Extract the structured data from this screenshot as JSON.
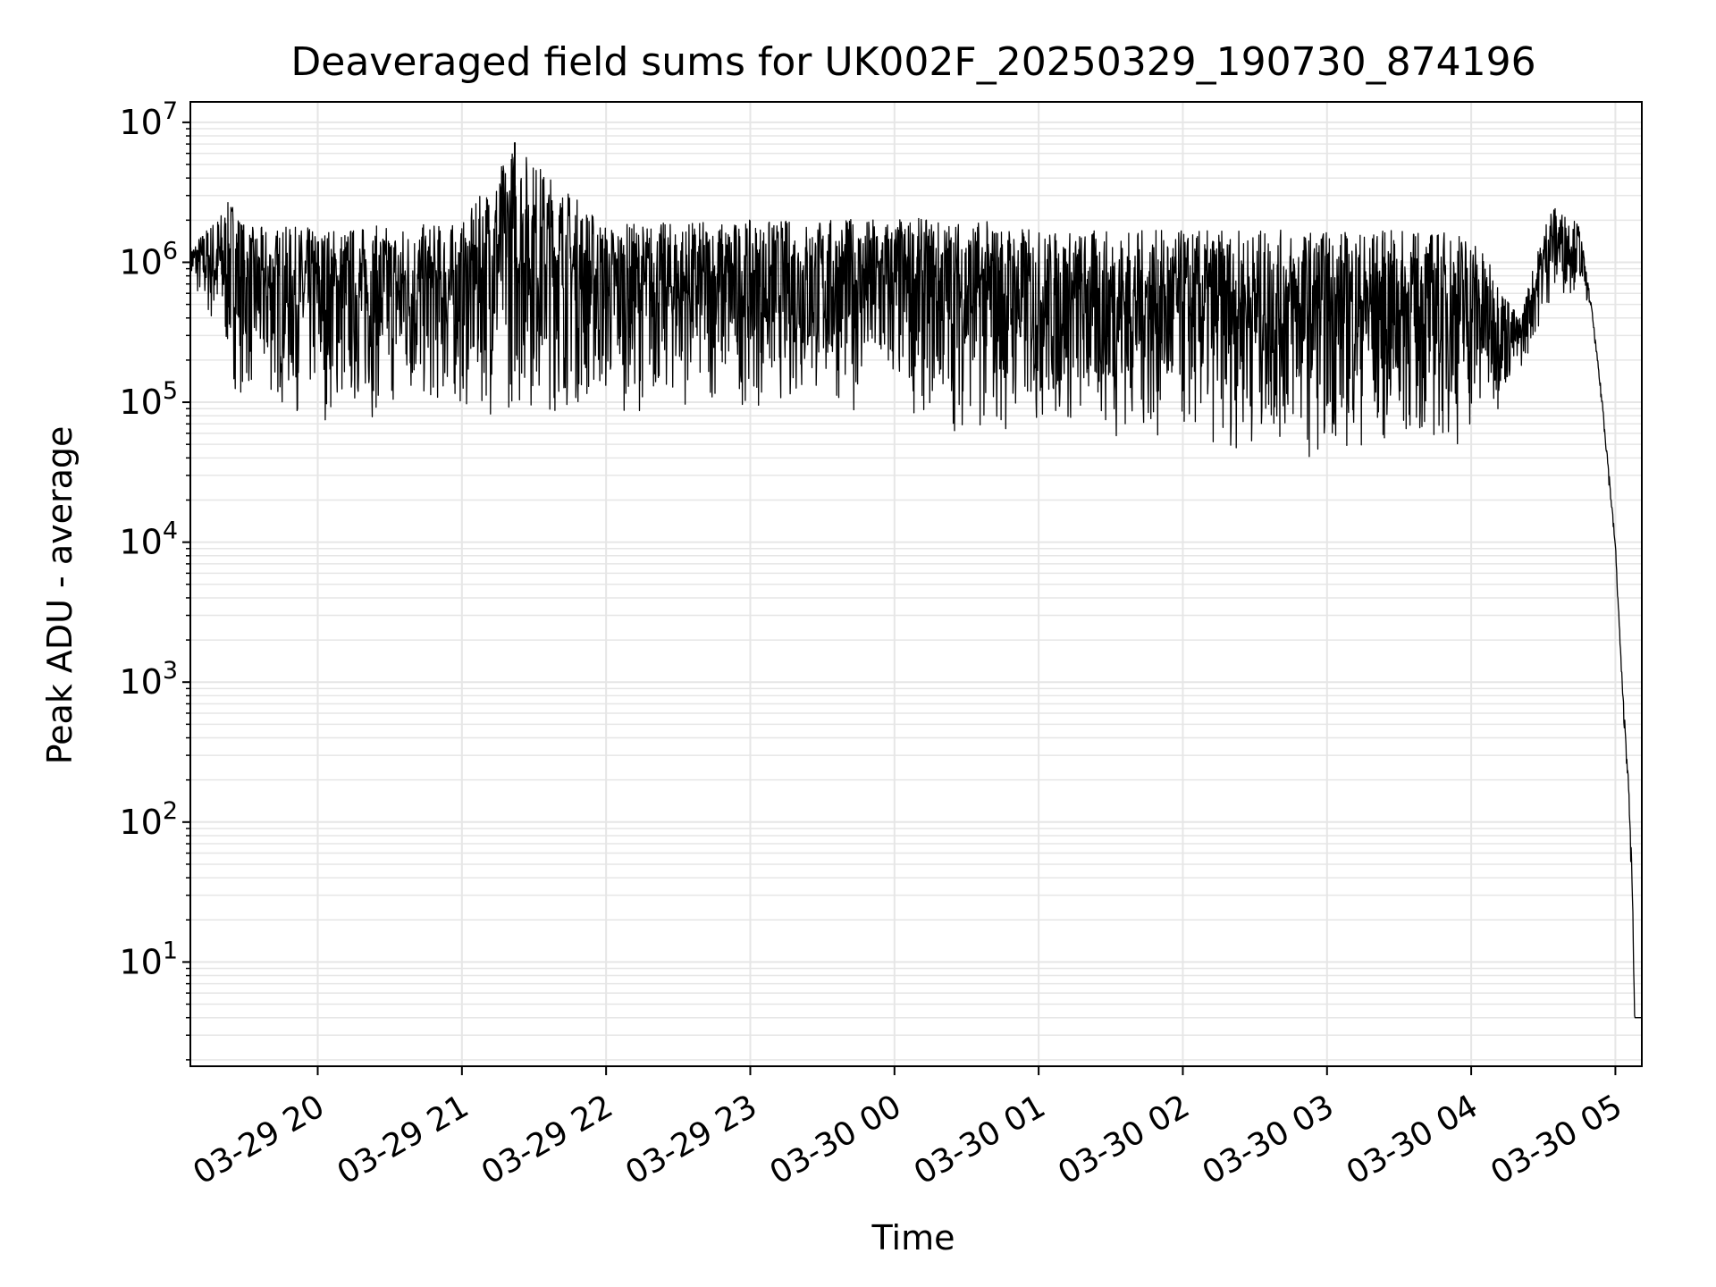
{
  "chart_data": {
    "type": "line",
    "title": "Deaveraged field sums for UK002F_20250329_190730_874196",
    "xlabel": "Time",
    "ylabel": "Peak ADU - average",
    "yscale": "log",
    "ylim": [
      1.8,
      14000000
    ],
    "xlim": [
      "03-29 19:07",
      "03-30 05:11"
    ],
    "x_ticks": [
      {
        "value": "03-29 20:00",
        "label": "03-29 20"
      },
      {
        "value": "03-29 21:00",
        "label": "03-29 21"
      },
      {
        "value": "03-29 22:00",
        "label": "03-29 22"
      },
      {
        "value": "03-29 23:00",
        "label": "03-29 23"
      },
      {
        "value": "03-30 00:00",
        "label": "03-30 00"
      },
      {
        "value": "03-30 01:00",
        "label": "03-30 01"
      },
      {
        "value": "03-30 02:00",
        "label": "03-30 02"
      },
      {
        "value": "03-30 03:00",
        "label": "03-30 03"
      },
      {
        "value": "03-30 04:00",
        "label": "03-30 04"
      },
      {
        "value": "03-30 05:00",
        "label": "03-30 05"
      }
    ],
    "y_ticks": [
      {
        "value": 10,
        "base": "10",
        "exp": "1"
      },
      {
        "value": 100,
        "base": "10",
        "exp": "2"
      },
      {
        "value": 1000,
        "base": "10",
        "exp": "3"
      },
      {
        "value": 10000,
        "base": "10",
        "exp": "4"
      },
      {
        "value": 100000,
        "base": "10",
        "exp": "5"
      },
      {
        "value": 1000000,
        "base": "10",
        "exp": "6"
      },
      {
        "value": 10000000,
        "base": "10",
        "exp": "7"
      }
    ],
    "grid": true,
    "line_color": "#000000",
    "grid_color": "#e6e6e6",
    "series_summary": [
      {
        "time": "03-29 19:07",
        "low": 700000,
        "high": 1300000
      },
      {
        "time": "03-29 19:25",
        "low": 120000,
        "high": 3000000
      },
      {
        "time": "03-29 19:30",
        "low": 100000,
        "high": 1800000
      },
      {
        "time": "03-29 20:00",
        "low": 70000,
        "high": 1800000
      },
      {
        "time": "03-29 21:00",
        "low": 80000,
        "high": 1900000
      },
      {
        "time": "03-29 21:22",
        "low": 75000,
        "high": 7200000
      },
      {
        "time": "03-29 22:00",
        "low": 85000,
        "high": 1900000
      },
      {
        "time": "03-29 23:00",
        "low": 90000,
        "high": 2000000
      },
      {
        "time": "03-30 00:00",
        "low": 85000,
        "high": 2100000
      },
      {
        "time": "03-30 00:40",
        "low": 50000,
        "high": 2000000
      },
      {
        "time": "03-30 01:00",
        "low": 60000,
        "high": 1700000
      },
      {
        "time": "03-30 02:00",
        "low": 45000,
        "high": 1700000
      },
      {
        "time": "03-30 03:00",
        "low": 40000,
        "high": 1700000
      },
      {
        "time": "03-30 04:00",
        "low": 45000,
        "high": 1700000
      },
      {
        "time": "03-30 04:20",
        "low": 150000,
        "high": 400000
      },
      {
        "time": "03-30 04:33",
        "low": 500000,
        "high": 2600000
      },
      {
        "time": "03-30 04:45",
        "low": 650000,
        "high": 1900000
      },
      {
        "time": "03-30 04:50",
        "low": 450000,
        "high": 500000
      },
      {
        "time": "03-30 04:55",
        "low": 70000,
        "high": 90000
      },
      {
        "time": "03-30 05:00",
        "low": 8000,
        "high": 10000
      },
      {
        "time": "03-30 05:03",
        "low": 700,
        "high": 900
      },
      {
        "time": "03-30 05:05",
        "low": 200,
        "high": 300
      },
      {
        "time": "03-30 05:07",
        "low": 25,
        "high": 45
      },
      {
        "time": "03-30 05:08",
        "low": 4,
        "high": 4
      },
      {
        "time": "03-30 05:11",
        "low": 4,
        "high": 4
      }
    ]
  }
}
